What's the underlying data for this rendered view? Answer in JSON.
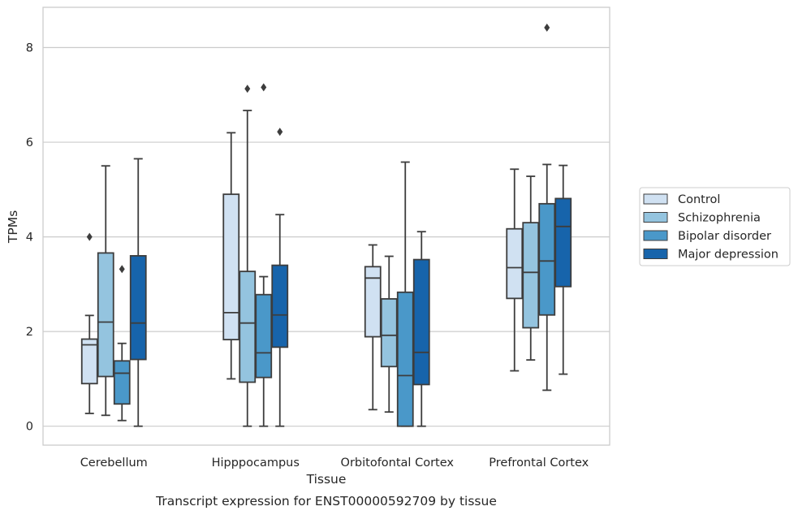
{
  "chart_data": {
    "type": "box",
    "title": "",
    "caption": "Transcript expression for ENST00000592709 by tissue",
    "xlabel": "Tissue",
    "ylabel": "TPMs",
    "ylim": [
      -0.4,
      8.85
    ],
    "yticks": [
      0,
      2,
      4,
      6,
      8
    ],
    "grid": "horizontal",
    "legend_position": "right",
    "categories": [
      "Cerebellum",
      "Hipppocampus",
      "Orbitofontal Cortex",
      "Prefrontal Cortex"
    ],
    "series": [
      {
        "name": "Control",
        "color": "#d0e1f2",
        "boxes": [
          {
            "whislo": 0.27,
            "q1": 0.9,
            "med": 1.72,
            "q3": 1.84,
            "whishi": 2.34,
            "fliers": [
              4.0
            ]
          },
          {
            "whislo": 1.0,
            "q1": 1.83,
            "med": 2.4,
            "q3": 4.9,
            "whishi": 6.2,
            "fliers": []
          },
          {
            "whislo": 0.35,
            "q1": 1.89,
            "med": 3.13,
            "q3": 3.37,
            "whishi": 3.83,
            "fliers": []
          },
          {
            "whislo": 1.17,
            "q1": 2.7,
            "med": 3.35,
            "q3": 4.17,
            "whishi": 5.43,
            "fliers": []
          }
        ]
      },
      {
        "name": "Schizophrenia",
        "color": "#94c4df",
        "boxes": [
          {
            "whislo": 0.23,
            "q1": 1.05,
            "med": 2.2,
            "q3": 3.66,
            "whishi": 5.5,
            "fliers": []
          },
          {
            "whislo": 0.0,
            "q1": 0.93,
            "med": 2.18,
            "q3": 3.27,
            "whishi": 6.67,
            "fliers": [
              7.13
            ]
          },
          {
            "whislo": 0.3,
            "q1": 1.26,
            "med": 1.92,
            "q3": 2.69,
            "whishi": 3.59,
            "fliers": []
          },
          {
            "whislo": 1.4,
            "q1": 2.08,
            "med": 3.25,
            "q3": 4.3,
            "whishi": 5.28,
            "fliers": []
          }
        ]
      },
      {
        "name": "Bipolar disorder",
        "color": "#4a98c9",
        "boxes": [
          {
            "whislo": 0.12,
            "q1": 0.47,
            "med": 1.12,
            "q3": 1.38,
            "whishi": 1.75,
            "fliers": [
              3.32
            ]
          },
          {
            "whislo": 0.0,
            "q1": 1.03,
            "med": 1.55,
            "q3": 2.78,
            "whishi": 3.16,
            "fliers": [
              7.16
            ]
          },
          {
            "whislo": 0.0,
            "q1": 0.0,
            "med": 1.07,
            "q3": 2.83,
            "whishi": 5.58,
            "fliers": []
          },
          {
            "whislo": 0.76,
            "q1": 2.35,
            "med": 3.49,
            "q3": 4.7,
            "whishi": 5.53,
            "fliers": [
              8.42
            ]
          }
        ]
      },
      {
        "name": "Major depression",
        "color": "#1764ab",
        "boxes": [
          {
            "whislo": 0.0,
            "q1": 1.41,
            "med": 2.18,
            "q3": 3.6,
            "whishi": 5.65,
            "fliers": []
          },
          {
            "whislo": 0.0,
            "q1": 1.67,
            "med": 2.35,
            "q3": 3.4,
            "whishi": 4.47,
            "fliers": [
              6.22
            ]
          },
          {
            "whislo": 0.0,
            "q1": 0.88,
            "med": 1.56,
            "q3": 3.52,
            "whishi": 4.11,
            "fliers": []
          },
          {
            "whislo": 1.1,
            "q1": 2.95,
            "med": 4.22,
            "q3": 4.81,
            "whishi": 5.51,
            "fliers": []
          }
        ]
      }
    ]
  },
  "colors": {
    "grid": "#cccccc",
    "frame": "#cccccc",
    "box_edge": "#3d3d3d",
    "text": "#262626"
  }
}
